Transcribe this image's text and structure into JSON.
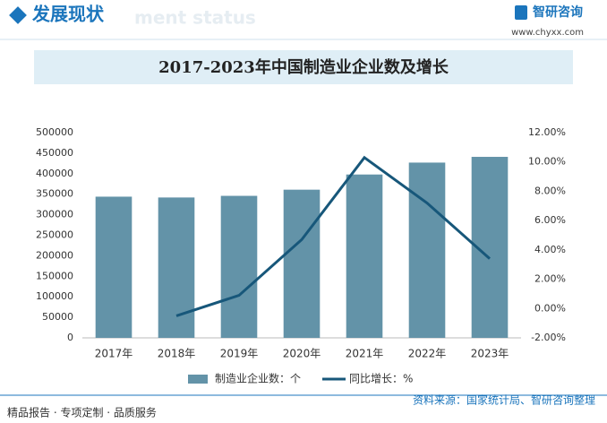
{
  "header": {
    "section": "发展现状",
    "watermark": "ment status",
    "brand": "智研咨询",
    "url": "www.chyxx.com"
  },
  "chart_data": {
    "type": "bar",
    "title": "2017-2023年中国制造业企业数及增长",
    "categories": [
      "2017年",
      "2018年",
      "2019年",
      "2020年",
      "2021年",
      "2022年",
      "2023年"
    ],
    "series": [
      {
        "name": "制造业企业数：个",
        "type": "bar",
        "color": "#6393a8",
        "values": [
          344000,
          342000,
          346000,
          361000,
          398000,
          427000,
          441000
        ]
      },
      {
        "name": "同比增长：%",
        "type": "line",
        "axis": "y2",
        "color": "#17577a",
        "values": [
          null,
          -0.5,
          0.9,
          4.7,
          10.3,
          7.2,
          3.4
        ]
      }
    ],
    "ylim": [
      0,
      500000
    ],
    "yticks": [
      0,
      50000,
      100000,
      150000,
      200000,
      250000,
      300000,
      350000,
      400000,
      450000,
      500000
    ],
    "y2lim": [
      -2,
      12
    ],
    "y2ticks": [
      {
        "value": -2,
        "label": "-2.00%"
      },
      {
        "value": 0,
        "label": "0.00%"
      },
      {
        "value": 2,
        "label": "2.00%"
      },
      {
        "value": 4,
        "label": "4.00%"
      },
      {
        "value": 6,
        "label": "6.00%"
      },
      {
        "value": 8,
        "label": "8.00%"
      },
      {
        "value": 10,
        "label": "10.00%"
      },
      {
        "value": 12,
        "label": "12.00%"
      }
    ],
    "grid": false,
    "legend": "bottom"
  },
  "footer": {
    "slogan": "精品报告 · 专项定制 · 品质服务",
    "source": "资料来源：国家统计局、智研咨询整理"
  }
}
